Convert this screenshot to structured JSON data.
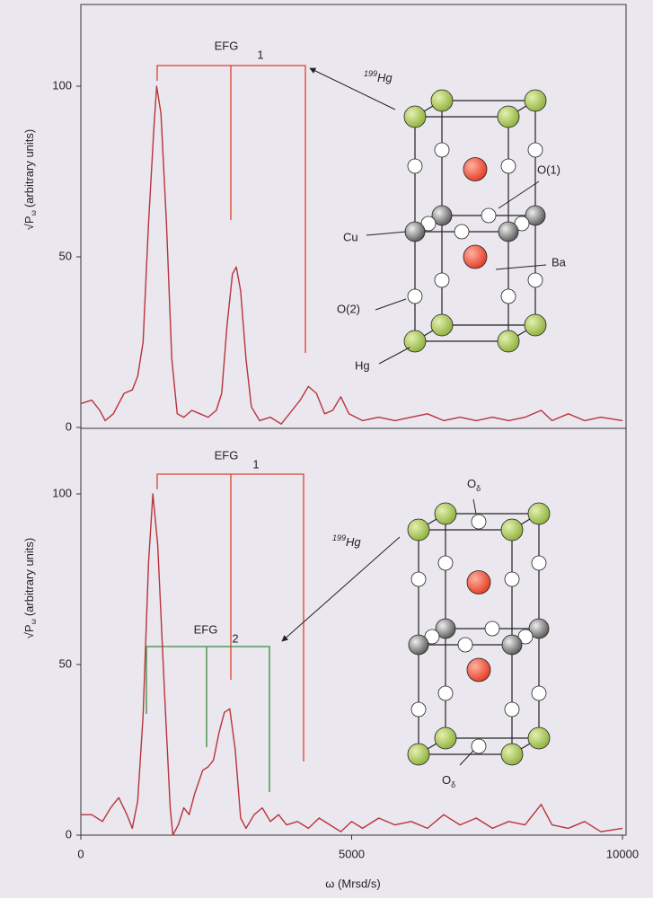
{
  "chart_data": [
    {
      "type": "line",
      "y_label": {
        "base": "√P",
        "sub": "ω",
        "rest": "(arbitrary units)"
      },
      "xlim": [
        0,
        10000
      ],
      "ylim": [
        0,
        124
      ],
      "yticks": [
        0,
        50,
        100
      ],
      "series": [
        {
          "color": "#b8343a",
          "x": [
            0,
            200,
            350,
            450,
            600,
            800,
            950,
            1050,
            1150,
            1250,
            1350,
            1400,
            1480,
            1580,
            1680,
            1780,
            1900,
            2050,
            2200,
            2350,
            2500,
            2600,
            2700,
            2800,
            2870,
            2950,
            3050,
            3150,
            3300,
            3500,
            3700,
            3900,
            4050,
            4200,
            4350,
            4500,
            4650,
            4800,
            4950,
            5200,
            5500,
            5800,
            6100,
            6400,
            6700,
            7000,
            7300,
            7600,
            7900,
            8200,
            8500,
            8700,
            9000,
            9300,
            9600,
            10000
          ],
          "values": [
            7,
            8,
            5,
            2,
            4,
            10,
            11,
            15,
            25,
            60,
            88,
            100,
            92,
            60,
            20,
            4,
            3,
            5,
            4,
            3,
            5,
            10,
            30,
            45,
            47,
            40,
            20,
            6,
            2,
            3,
            1,
            5,
            8,
            12,
            10,
            4,
            5,
            9,
            4,
            2,
            3,
            2,
            3,
            4,
            2,
            3,
            2,
            3,
            2,
            3,
            5,
            2,
            4,
            2,
            3,
            2
          ]
        }
      ],
      "annotations": {
        "efg": "EFG",
        "efg_index": "1",
        "isotope_mass": "199",
        "isotope_element": "Hg",
        "cu": "Cu",
        "o1": "O(1)",
        "ba": "Ba",
        "o2": "O(2)",
        "hg": "Hg"
      }
    },
    {
      "type": "line",
      "y_label": {
        "base": "√P",
        "sub": "ω",
        "rest": "(arbitrary units)"
      },
      "x_label": "ω (Mrsd/s)",
      "xlim": [
        0,
        10000
      ],
      "xticks": [
        0,
        5000,
        10000
      ],
      "ylim": [
        0,
        119
      ],
      "yticks": [
        0,
        50,
        100
      ],
      "series": [
        {
          "color": "#b8343a",
          "x": [
            0,
            200,
            400,
            550,
            700,
            850,
            950,
            1050,
            1150,
            1250,
            1330,
            1420,
            1550,
            1650,
            1700,
            1800,
            1900,
            2000,
            2100,
            2250,
            2350,
            2450,
            2550,
            2650,
            2750,
            2850,
            2950,
            3050,
            3200,
            3350,
            3500,
            3650,
            3800,
            4000,
            4200,
            4400,
            4600,
            4800,
            5000,
            5200,
            5500,
            5800,
            6100,
            6400,
            6700,
            7000,
            7300,
            7600,
            7900,
            8200,
            8500,
            8700,
            9000,
            9300,
            9600,
            10000
          ],
          "values": [
            6,
            6,
            4,
            8,
            11,
            6,
            2,
            10,
            35,
            80,
            100,
            85,
            40,
            8,
            0,
            3,
            8,
            6,
            12,
            19,
            20,
            22,
            30,
            36,
            37,
            25,
            5,
            2,
            6,
            8,
            4,
            6,
            3,
            4,
            2,
            5,
            3,
            1,
            4,
            2,
            5,
            3,
            4,
            2,
            6,
            3,
            5,
            2,
            4,
            3,
            9,
            3,
            2,
            4,
            1,
            2
          ]
        }
      ],
      "annotations": {
        "efg1": "EFG",
        "efg1_index": "1",
        "efg2": "EFG",
        "efg2_index": "2",
        "isotope_mass": "199",
        "isotope_element": "Hg",
        "o_delta_top": {
          "base": "O",
          "sub": "δ"
        },
        "o_delta_bottom": {
          "base": "O",
          "sub": "δ"
        }
      }
    }
  ]
}
